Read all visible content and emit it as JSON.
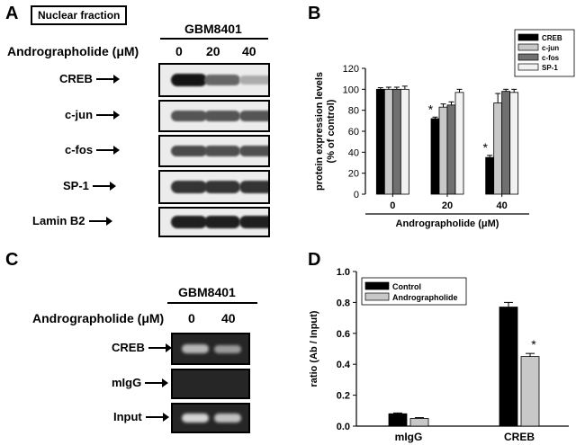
{
  "panels": {
    "a": {
      "letter": "A",
      "fraction_label": "Nuclear fraction",
      "cell_line": "GBM8401",
      "treatment_label": "Andrographolide (μM)",
      "doses": [
        "0",
        "20",
        "40"
      ],
      "blots": [
        {
          "label": "CREB",
          "intensities": [
            1.0,
            0.62,
            0.3
          ]
        },
        {
          "label": "c-jun",
          "intensities": [
            0.7,
            0.7,
            0.7
          ]
        },
        {
          "label": "c-fos",
          "intensities": [
            0.75,
            0.72,
            0.72
          ]
        },
        {
          "label": "SP-1",
          "intensities": [
            0.85,
            0.85,
            0.85
          ]
        },
        {
          "label": "Lamin B2",
          "intensities": [
            0.95,
            0.95,
            0.95
          ]
        }
      ]
    },
    "c": {
      "letter": "C",
      "cell_line": "GBM8401",
      "treatment_label": "Andrographolide (μM)",
      "doses": [
        "0",
        "40"
      ],
      "gels": [
        {
          "label": "CREB",
          "intensities": [
            0.75,
            0.6
          ]
        },
        {
          "label": "mIgG",
          "intensities": [
            0,
            0
          ]
        },
        {
          "label": "Input",
          "intensities": [
            0.9,
            0.8
          ]
        }
      ]
    }
  },
  "chart_data": [
    {
      "panel": "B",
      "type": "bar",
      "categories": [
        "0",
        "20",
        "40"
      ],
      "series": [
        {
          "name": "CREB",
          "values": [
            100,
            72,
            35
          ],
          "errors": [
            1.5,
            1.5,
            2
          ]
        },
        {
          "name": "c-jun",
          "values": [
            100,
            83,
            87
          ],
          "errors": [
            2,
            3,
            9
          ]
        },
        {
          "name": "c-fos",
          "values": [
            100,
            85,
            98
          ],
          "errors": [
            2,
            3,
            2
          ]
        },
        {
          "name": "SP-1",
          "values": [
            100,
            97,
            97
          ],
          "errors": [
            3,
            3,
            3
          ]
        }
      ],
      "colors": [
        "#000000",
        "#c8c8c8",
        "#707070",
        "#f2f2f2"
      ],
      "ylabel_line1": "protein expression levels",
      "ylabel_line2": "(% of control)",
      "xlabel": "Andrographolide (μM)",
      "ylim": [
        0,
        120
      ],
      "yticks": [
        "0",
        "20",
        "40",
        "60",
        "80",
        "100",
        "120"
      ],
      "legend_position": "top-right",
      "significance_marker": "*",
      "significant": [
        "20:CREB",
        "40:CREB"
      ]
    },
    {
      "panel": "D",
      "type": "bar",
      "categories": [
        "mIgG",
        "CREB"
      ],
      "series": [
        {
          "name": "Control",
          "values": [
            0.08,
            0.77
          ],
          "errors": [
            0.005,
            0.03
          ]
        },
        {
          "name": "Andrographolide",
          "values": [
            0.05,
            0.45
          ],
          "errors": [
            0.005,
            0.02
          ]
        }
      ],
      "colors": [
        "#000000",
        "#c8c8c8"
      ],
      "ylabel": "ratio (Ab / Input)",
      "ylim": [
        0,
        1.0
      ],
      "yticks": [
        "0.0",
        "0.2",
        "0.4",
        "0.6",
        "0.8",
        "1.0"
      ],
      "legend_position": "top-left",
      "significance_marker": "*",
      "significant": [
        "CREB:Andrographolide"
      ]
    }
  ]
}
